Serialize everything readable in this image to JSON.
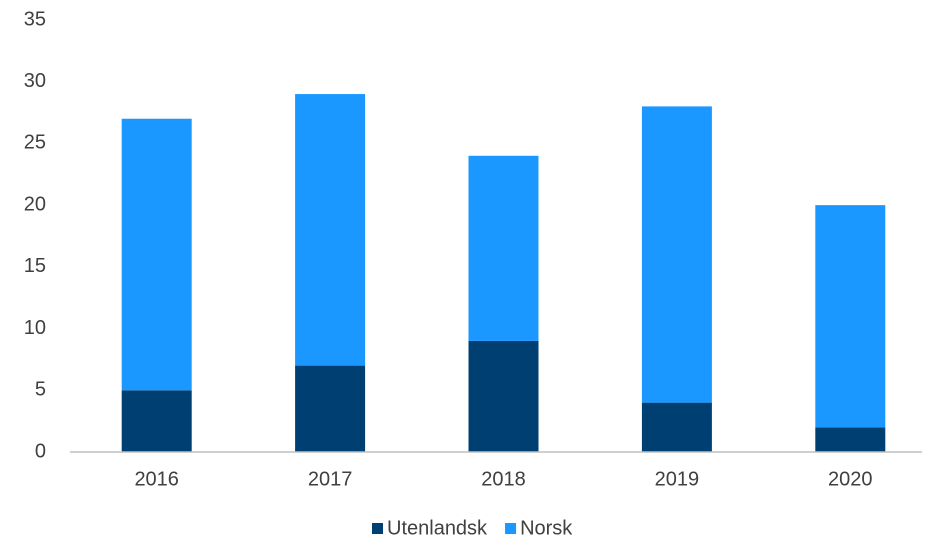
{
  "chart_data": {
    "type": "stacked_bar",
    "categories": [
      "2016",
      "2017",
      "2018",
      "2019",
      "2020"
    ],
    "series": [
      {
        "name": "Utenlandsk",
        "color": "#003f72",
        "values": [
          5,
          7,
          9,
          4,
          2
        ]
      },
      {
        "name": "Norsk",
        "color": "#1a98ff",
        "values": [
          22,
          22,
          15,
          24,
          18
        ]
      }
    ],
    "ylim": [
      0,
      35
    ],
    "yticks": [
      0,
      5,
      10,
      15,
      20,
      25,
      30,
      35
    ],
    "grid": false,
    "legend": "bottom"
  }
}
